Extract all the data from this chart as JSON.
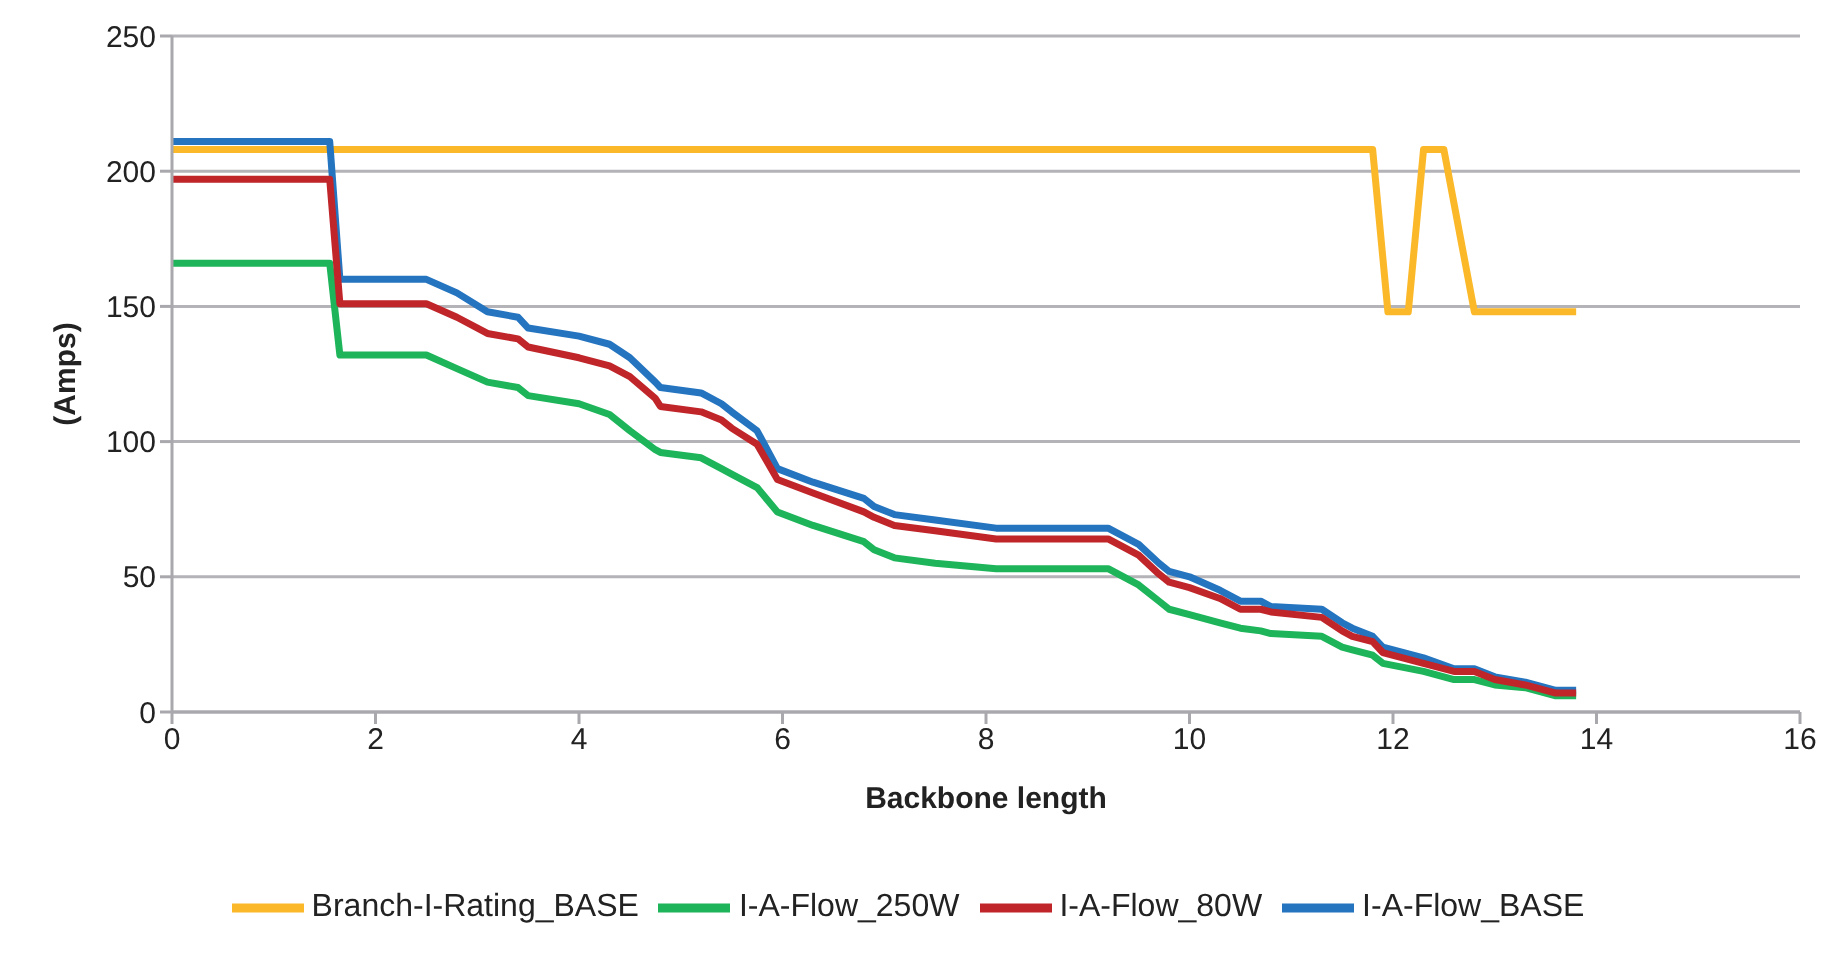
{
  "chart_data": {
    "type": "line",
    "xlabel": "Backbone length",
    "ylabel": "(Amps)",
    "xlim": [
      0,
      16
    ],
    "xticks": [
      0,
      2,
      4,
      6,
      8,
      10,
      12,
      14,
      16
    ],
    "ylim": [
      0,
      250
    ],
    "yticks": [
      0,
      50,
      100,
      150,
      200,
      250
    ],
    "grid": "y",
    "legend": "bottom",
    "marker": "none",
    "line_style": "solid",
    "series": [
      {
        "name": "Branch-I-Rating_BASE",
        "color": "#fbb829",
        "x": [
          0,
          11.8,
          11.95,
          12.15,
          12.3,
          12.5,
          12.8,
          13.8
        ],
        "values": [
          208,
          208,
          148,
          148,
          208,
          208,
          148,
          148
        ]
      },
      {
        "name": "I-A-Flow_BASE",
        "color": "#2474c0",
        "x": [
          0,
          1.55,
          1.65,
          2.5,
          2.8,
          3.1,
          3.4,
          3.5,
          4.0,
          4.3,
          4.5,
          4.75,
          4.8,
          5.2,
          5.4,
          5.5,
          5.75,
          5.95,
          6.3,
          6.8,
          6.9,
          7.1,
          7.5,
          8.1,
          9.2,
          9.5,
          9.7,
          9.8,
          10.0,
          10.3,
          10.5,
          10.7,
          10.8,
          11.3,
          11.5,
          11.6,
          11.8,
          11.9,
          12.3,
          12.6,
          12.8,
          13.0,
          13.3,
          13.6,
          13.8
        ],
        "values": [
          211,
          211,
          160,
          160,
          155,
          148,
          146,
          142,
          139,
          136,
          131,
          122,
          120,
          118,
          114,
          111,
          104,
          90,
          85,
          79,
          76,
          73,
          71,
          68,
          68,
          62,
          55,
          52,
          50,
          45,
          41,
          41,
          39,
          38,
          33,
          31,
          28,
          24,
          20,
          16,
          16,
          13,
          11,
          8,
          8
        ]
      },
      {
        "name": "I-A-Flow_250W",
        "color": "#1db45a",
        "x": [
          0,
          1.55,
          1.65,
          2.5,
          2.8,
          3.1,
          3.4,
          3.5,
          4.0,
          4.3,
          4.5,
          4.75,
          4.8,
          5.2,
          5.4,
          5.5,
          5.75,
          5.95,
          6.3,
          6.8,
          6.9,
          7.1,
          7.5,
          8.1,
          9.2,
          9.5,
          9.7,
          9.8,
          10.0,
          10.3,
          10.5,
          10.7,
          10.8,
          11.3,
          11.5,
          11.6,
          11.8,
          11.9,
          12.3,
          12.6,
          12.8,
          13.0,
          13.3,
          13.6,
          13.8
        ],
        "values": [
          166,
          166,
          132,
          132,
          127,
          122,
          120,
          117,
          114,
          110,
          104,
          97,
          96,
          94,
          90,
          88,
          83,
          74,
          69,
          63,
          60,
          57,
          55,
          53,
          53,
          47,
          41,
          38,
          36,
          33,
          31,
          30,
          29,
          28,
          24,
          23,
          21,
          18,
          15,
          12,
          12,
          10,
          9,
          6,
          6
        ]
      },
      {
        "name": "I-A-Flow_80W",
        "color": "#c0252a",
        "x": [
          0,
          1.55,
          1.65,
          2.5,
          2.8,
          3.1,
          3.4,
          3.5,
          4.0,
          4.3,
          4.5,
          4.75,
          4.8,
          5.2,
          5.4,
          5.5,
          5.75,
          5.95,
          6.3,
          6.8,
          6.9,
          7.1,
          7.5,
          8.1,
          9.2,
          9.5,
          9.7,
          9.8,
          10.0,
          10.3,
          10.5,
          10.7,
          10.8,
          11.3,
          11.5,
          11.6,
          11.8,
          11.9,
          12.3,
          12.6,
          12.8,
          13.0,
          13.3,
          13.6,
          13.8
        ],
        "values": [
          197,
          197,
          151,
          151,
          146,
          140,
          138,
          135,
          131,
          128,
          124,
          116,
          113,
          111,
          108,
          105,
          99,
          86,
          81,
          74,
          72,
          69,
          67,
          64,
          64,
          58,
          51,
          48,
          46,
          42,
          38,
          38,
          37,
          35,
          30,
          28,
          26,
          22,
          18,
          15,
          15,
          12,
          10,
          7,
          7
        ]
      }
    ]
  }
}
